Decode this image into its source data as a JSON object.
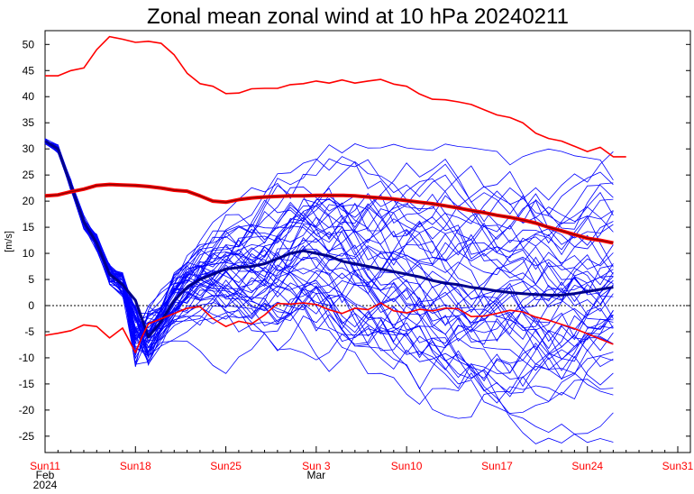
{
  "chart_data": {
    "type": "line",
    "title": "Zonal mean zonal wind at 10 hPa 20240211",
    "ylabel": "[m/s]",
    "xlabel": "",
    "ylim": [
      -28,
      55
    ],
    "xlim": [
      0,
      49
    ],
    "yticks": [
      -25,
      -20,
      -15,
      -10,
      -5,
      0,
      5,
      10,
      15,
      20,
      25,
      30,
      35,
      40,
      45,
      50
    ],
    "xticks": [
      {
        "day": 0,
        "label": "Sun11",
        "sub1": "Feb",
        "sub2": "2024"
      },
      {
        "day": 7,
        "label": "Sun18",
        "sub1": "",
        "sub2": ""
      },
      {
        "day": 14,
        "label": "Sun25",
        "sub1": "",
        "sub2": ""
      },
      {
        "day": 21,
        "label": "Sun 3",
        "sub1": "Mar",
        "sub2": ""
      },
      {
        "day": 28,
        "label": "Sun10",
        "sub1": "",
        "sub2": ""
      },
      {
        "day": 35,
        "label": "Sun17",
        "sub1": "",
        "sub2": ""
      },
      {
        "day": 42,
        "label": "Sun24",
        "sub1": "",
        "sub2": ""
      },
      {
        "day": 49,
        "label": "Sun31",
        "sub1": "",
        "sub2": ""
      }
    ],
    "zero_line": true,
    "colors": {
      "climatology": "#ff0000",
      "members": "#0000ff",
      "mean": "#00008b",
      "clim_mean_core": "#8b0000"
    },
    "series": [
      {
        "role": "climatology-max",
        "x": [
          0,
          1,
          2,
          3,
          4,
          5,
          6,
          7,
          8,
          9,
          10,
          11,
          12,
          13,
          14,
          15,
          16,
          17,
          18,
          19,
          20,
          21,
          22,
          23,
          24,
          25,
          26,
          27,
          28,
          29,
          30,
          31,
          32,
          33,
          34,
          35,
          36,
          37,
          38,
          39,
          40,
          41,
          42,
          43,
          44,
          45
        ],
        "values": [
          44,
          44,
          45,
          45.5,
          49,
          51.5,
          51,
          50.4,
          50.6,
          50.2,
          48,
          44.5,
          42.5,
          42,
          40.6,
          40.7,
          41.5,
          41.6,
          41.6,
          42.3,
          42.5,
          43,
          42.6,
          43.2,
          42.6,
          43,
          43.3,
          42.4,
          42,
          40.5,
          39.5,
          39.4,
          39,
          38.5,
          37.5,
          36.5,
          36,
          35,
          33,
          32,
          31.5,
          30.5,
          29.5,
          30.3,
          28.5,
          28.5
        ]
      },
      {
        "role": "climatology-mean",
        "x": [
          0,
          1,
          2,
          3,
          4,
          5,
          6,
          7,
          8,
          9,
          10,
          11,
          12,
          13,
          14,
          15,
          16,
          17,
          18,
          19,
          20,
          21,
          22,
          23,
          24,
          25,
          26,
          27,
          28,
          29,
          30,
          31,
          32,
          33,
          34,
          35,
          36,
          37,
          38,
          39,
          40,
          41,
          42,
          43,
          44
        ],
        "values": [
          21,
          21.2,
          21.8,
          22.3,
          23,
          23.2,
          23.1,
          23,
          22.8,
          22.5,
          22.1,
          21.9,
          21,
          20,
          19.8,
          20.3,
          20.6,
          20.8,
          20.9,
          21,
          21,
          21.1,
          21.1,
          21.1,
          21,
          20.8,
          20.6,
          20.4,
          20.1,
          19.8,
          19.5,
          19.1,
          18.7,
          18.2,
          17.8,
          17.3,
          16.9,
          16.4,
          15.8,
          15,
          14.3,
          13.6,
          12.9,
          12.5,
          12
        ]
      },
      {
        "role": "climatology-min",
        "x": [
          0,
          1,
          2,
          3,
          4,
          5,
          6,
          7,
          7.5,
          8,
          9,
          10,
          11,
          12,
          13,
          14,
          15,
          16,
          17,
          18,
          19,
          20,
          21,
          22,
          23,
          24,
          25,
          26,
          27,
          28,
          29,
          30,
          31,
          32,
          33,
          34,
          35,
          36,
          37,
          38,
          39,
          40,
          41,
          42,
          43,
          44
        ],
        "values": [
          -5.7,
          -5.3,
          -4.8,
          -3.7,
          -4,
          -6.2,
          -4.3,
          -9,
          -6,
          -3.5,
          -2.5,
          -1.5,
          -0.5,
          -0.2,
          -2.5,
          -4,
          -3,
          -3.5,
          -1.8,
          0.4,
          0.3,
          0.5,
          0.2,
          -0.8,
          -1.5,
          -0.5,
          -0.8,
          0.5,
          -1,
          -1.4,
          -0.7,
          -1,
          -0.5,
          -0.6,
          -2.1,
          -2,
          -1.5,
          -0.9,
          -1.2,
          -2.2,
          -2.8,
          -3.6,
          -4.4,
          -5.4,
          -6.4,
          -7.4
        ]
      },
      {
        "role": "ensemble-mean",
        "x": [
          0,
          1,
          2,
          3,
          4,
          5,
          6,
          7,
          8,
          9,
          10,
          11,
          12,
          13,
          14,
          15,
          16,
          17,
          18,
          19,
          20,
          21,
          22,
          23,
          24,
          25,
          26,
          27,
          28,
          29,
          30,
          31,
          32,
          33,
          34,
          35,
          36,
          37,
          38,
          39,
          40,
          41,
          42,
          43,
          44
        ],
        "values": [
          31.5,
          30,
          23,
          16,
          12,
          6,
          4,
          1,
          -6,
          -3,
          1,
          3.5,
          5,
          6,
          7,
          7.3,
          7.5,
          8,
          9,
          10,
          10.5,
          10,
          9.5,
          8.5,
          8,
          7.5,
          7,
          6.5,
          6,
          5.5,
          4.8,
          4.3,
          4,
          3.5,
          3.2,
          2.8,
          2.5,
          2.3,
          2.1,
          2,
          2,
          2.3,
          2.7,
          3.1,
          3.5
        ]
      }
    ],
    "ensemble": {
      "members": 50,
      "x_start": 0,
      "x_end": 44,
      "initial": 31.5,
      "collapse_day": 8,
      "collapse_range": [
        -12,
        0
      ],
      "spread_range": [
        -27,
        31.5
      ]
    }
  }
}
